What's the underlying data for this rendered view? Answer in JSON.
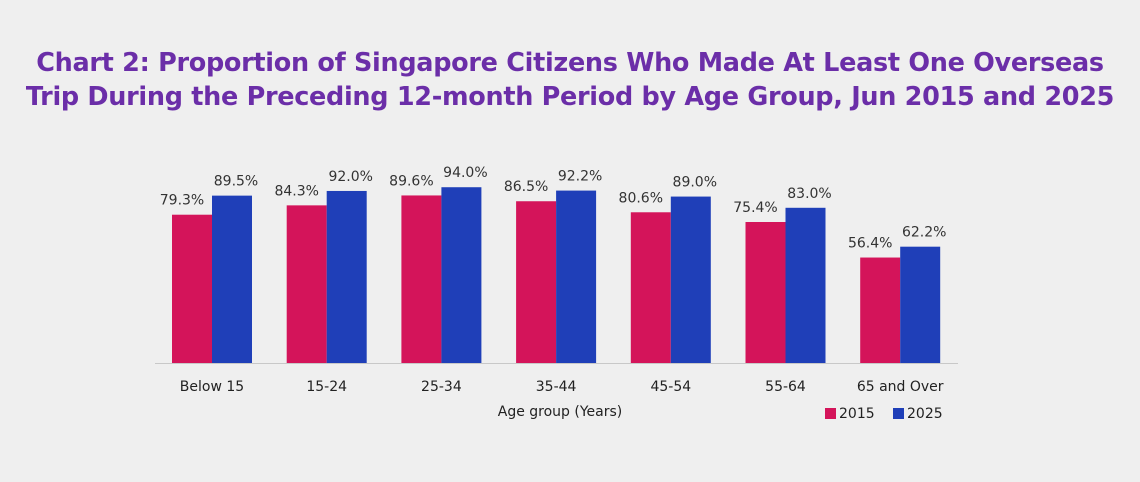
{
  "chart_data": {
    "type": "bar",
    "title_lines": [
      "Chart 2: Proportion of Singapore Citizens Who Made At Least One Overseas",
      "Trip During the Preceding 12-month Period by Age Group, Jun 2015 and 2025"
    ],
    "xlabel": "Age group (Years)",
    "ylabel": "",
    "ylim": [
      0,
      100
    ],
    "grid": false,
    "legend_position": "bottom-right",
    "categories": [
      "Below 15",
      "15-24",
      "25-34",
      "35-44",
      "45-54",
      "55-64",
      "65 and Over"
    ],
    "series": [
      {
        "name": "2015",
        "color": "#d4145a",
        "values": [
          79.3,
          84.3,
          89.6,
          86.5,
          80.6,
          75.4,
          56.4
        ],
        "labels": [
          "79.3%",
          "84.3%",
          "89.6%",
          "86.5%",
          "80.6%",
          "75.4%",
          "56.4%"
        ]
      },
      {
        "name": "2025",
        "color": "#1f3fb8",
        "values": [
          89.5,
          92.0,
          94.0,
          92.2,
          89.0,
          83.0,
          62.2
        ],
        "labels": [
          "89.5%",
          "92.0%",
          "94.0%",
          "92.2%",
          "89.0%",
          "83.0%",
          "62.2%"
        ]
      }
    ]
  }
}
